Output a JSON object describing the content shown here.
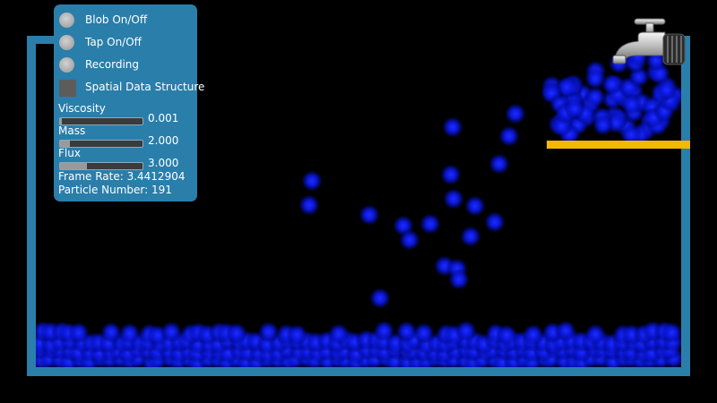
{
  "panel": {
    "options": [
      {
        "label": "Blob On/Off"
      },
      {
        "label": "Tap On/Off"
      },
      {
        "label": "Recording"
      },
      {
        "label": "Spatial Data Structure"
      }
    ],
    "sliders": [
      {
        "name": "Viscosity",
        "value": "0.001",
        "fill_fraction": 0.02
      },
      {
        "name": "Mass",
        "value": "2.000",
        "fill_fraction": 0.12
      },
      {
        "name": "Flux",
        "value": "3.000",
        "fill_fraction": 0.33
      }
    ],
    "frame_rate_label": "Frame Rate: 3.4412904",
    "particle_number_label": "Particle Number: 191"
  },
  "colors": {
    "panel": "#2a7eaa",
    "container": "#2a7eaa",
    "ledge": "#f5b800",
    "particle": "#0a16e6"
  }
}
